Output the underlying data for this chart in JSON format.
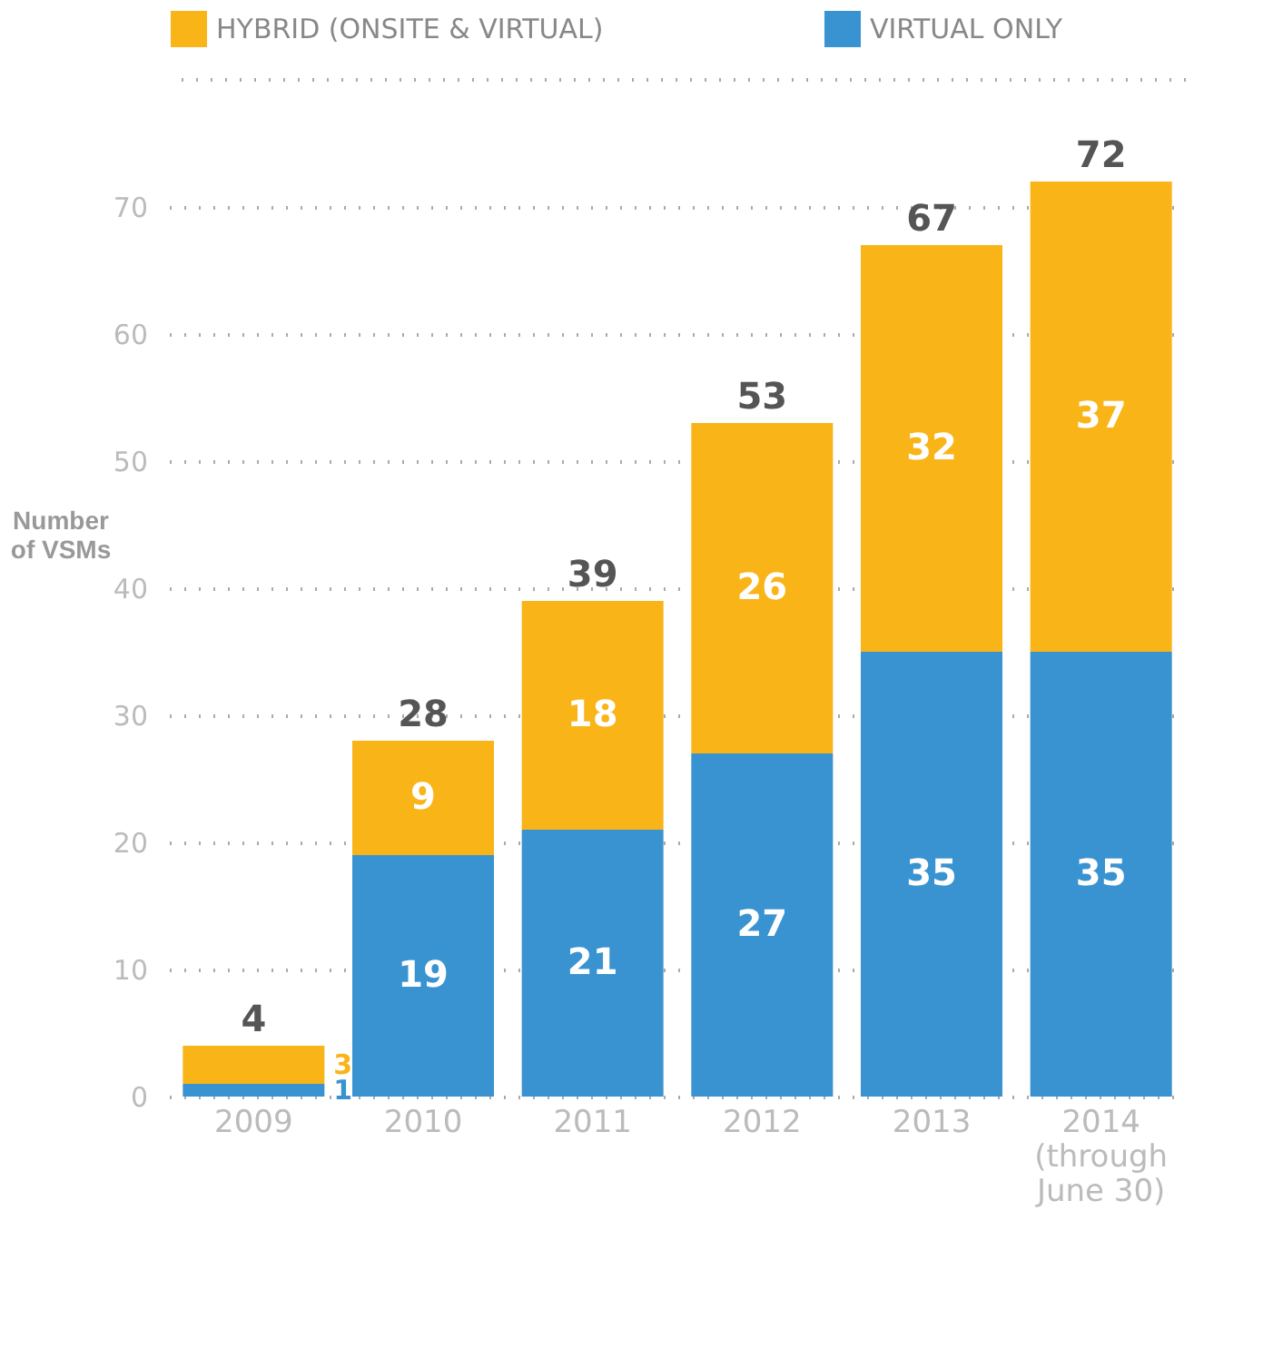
{
  "chart_data": {
    "type": "bar",
    "stacked": true,
    "categories": [
      "2009",
      "2010",
      "2011",
      "2012",
      "2013",
      "2014\n(through\nJune 30)"
    ],
    "series": [
      {
        "name": "VIRTUAL ONLY",
        "color": "#3a93d1",
        "values": [
          1,
          19,
          21,
          27,
          35,
          35
        ]
      },
      {
        "name": "HYBRID (ONSITE & VIRTUAL)",
        "color": "#f9b418",
        "values": [
          3,
          9,
          18,
          26,
          32,
          37
        ]
      }
    ],
    "totals": [
      "4",
      "28",
      "39",
      "53",
      "67",
      "72"
    ],
    "ylabel": "Number of VSMs",
    "ylim": [
      0,
      80
    ],
    "yticks": [
      0,
      10,
      20,
      30,
      40,
      50,
      60,
      70
    ],
    "grid": "y",
    "legend": "top",
    "data_labels": true
  }
}
